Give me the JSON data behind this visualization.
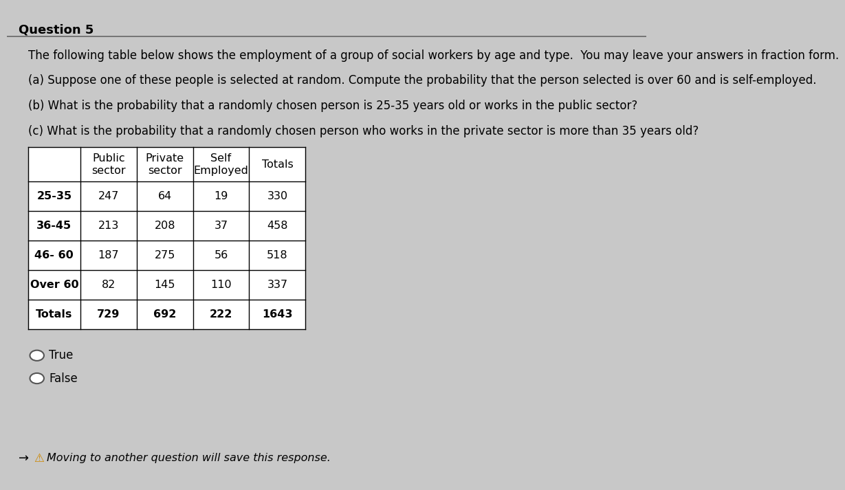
{
  "title": "Question 5",
  "intro": "The following table below shows the employment of a group of social workers by age and type.  You may leave your answers in fraction form.",
  "question_a": "(a) Suppose one of these people is selected at random. Compute the probability that the person selected is over 60 and is self-employed.",
  "question_b": "(b) What is the probability that a randomly chosen person is 25-35 years old or works in the public sector?",
  "question_c": "(c) What is the probability that a randomly chosen person who works in the private sector is more than 35 years old?",
  "col_headers": [
    "",
    "Public\nsector",
    "Private\nsector",
    "Self\nEmployed",
    "Totals"
  ],
  "rows": [
    [
      "25-35",
      "247",
      "64",
      "19",
      "330"
    ],
    [
      "36-45",
      "213",
      "208",
      "37",
      "458"
    ],
    [
      "46- 60",
      "187",
      "275",
      "56",
      "518"
    ],
    [
      "Over 60",
      "82",
      "145",
      "110",
      "337"
    ],
    [
      "Totals",
      "729",
      "692",
      "222",
      "1643"
    ]
  ],
  "true_false_label": [
    "True",
    "False"
  ],
  "footer": "Moving to another question will save this response.",
  "bg_color": "#c8c8c8",
  "text_color": "#000000",
  "title_fontsize": 13,
  "body_fontsize": 12,
  "table_fontsize": 12
}
